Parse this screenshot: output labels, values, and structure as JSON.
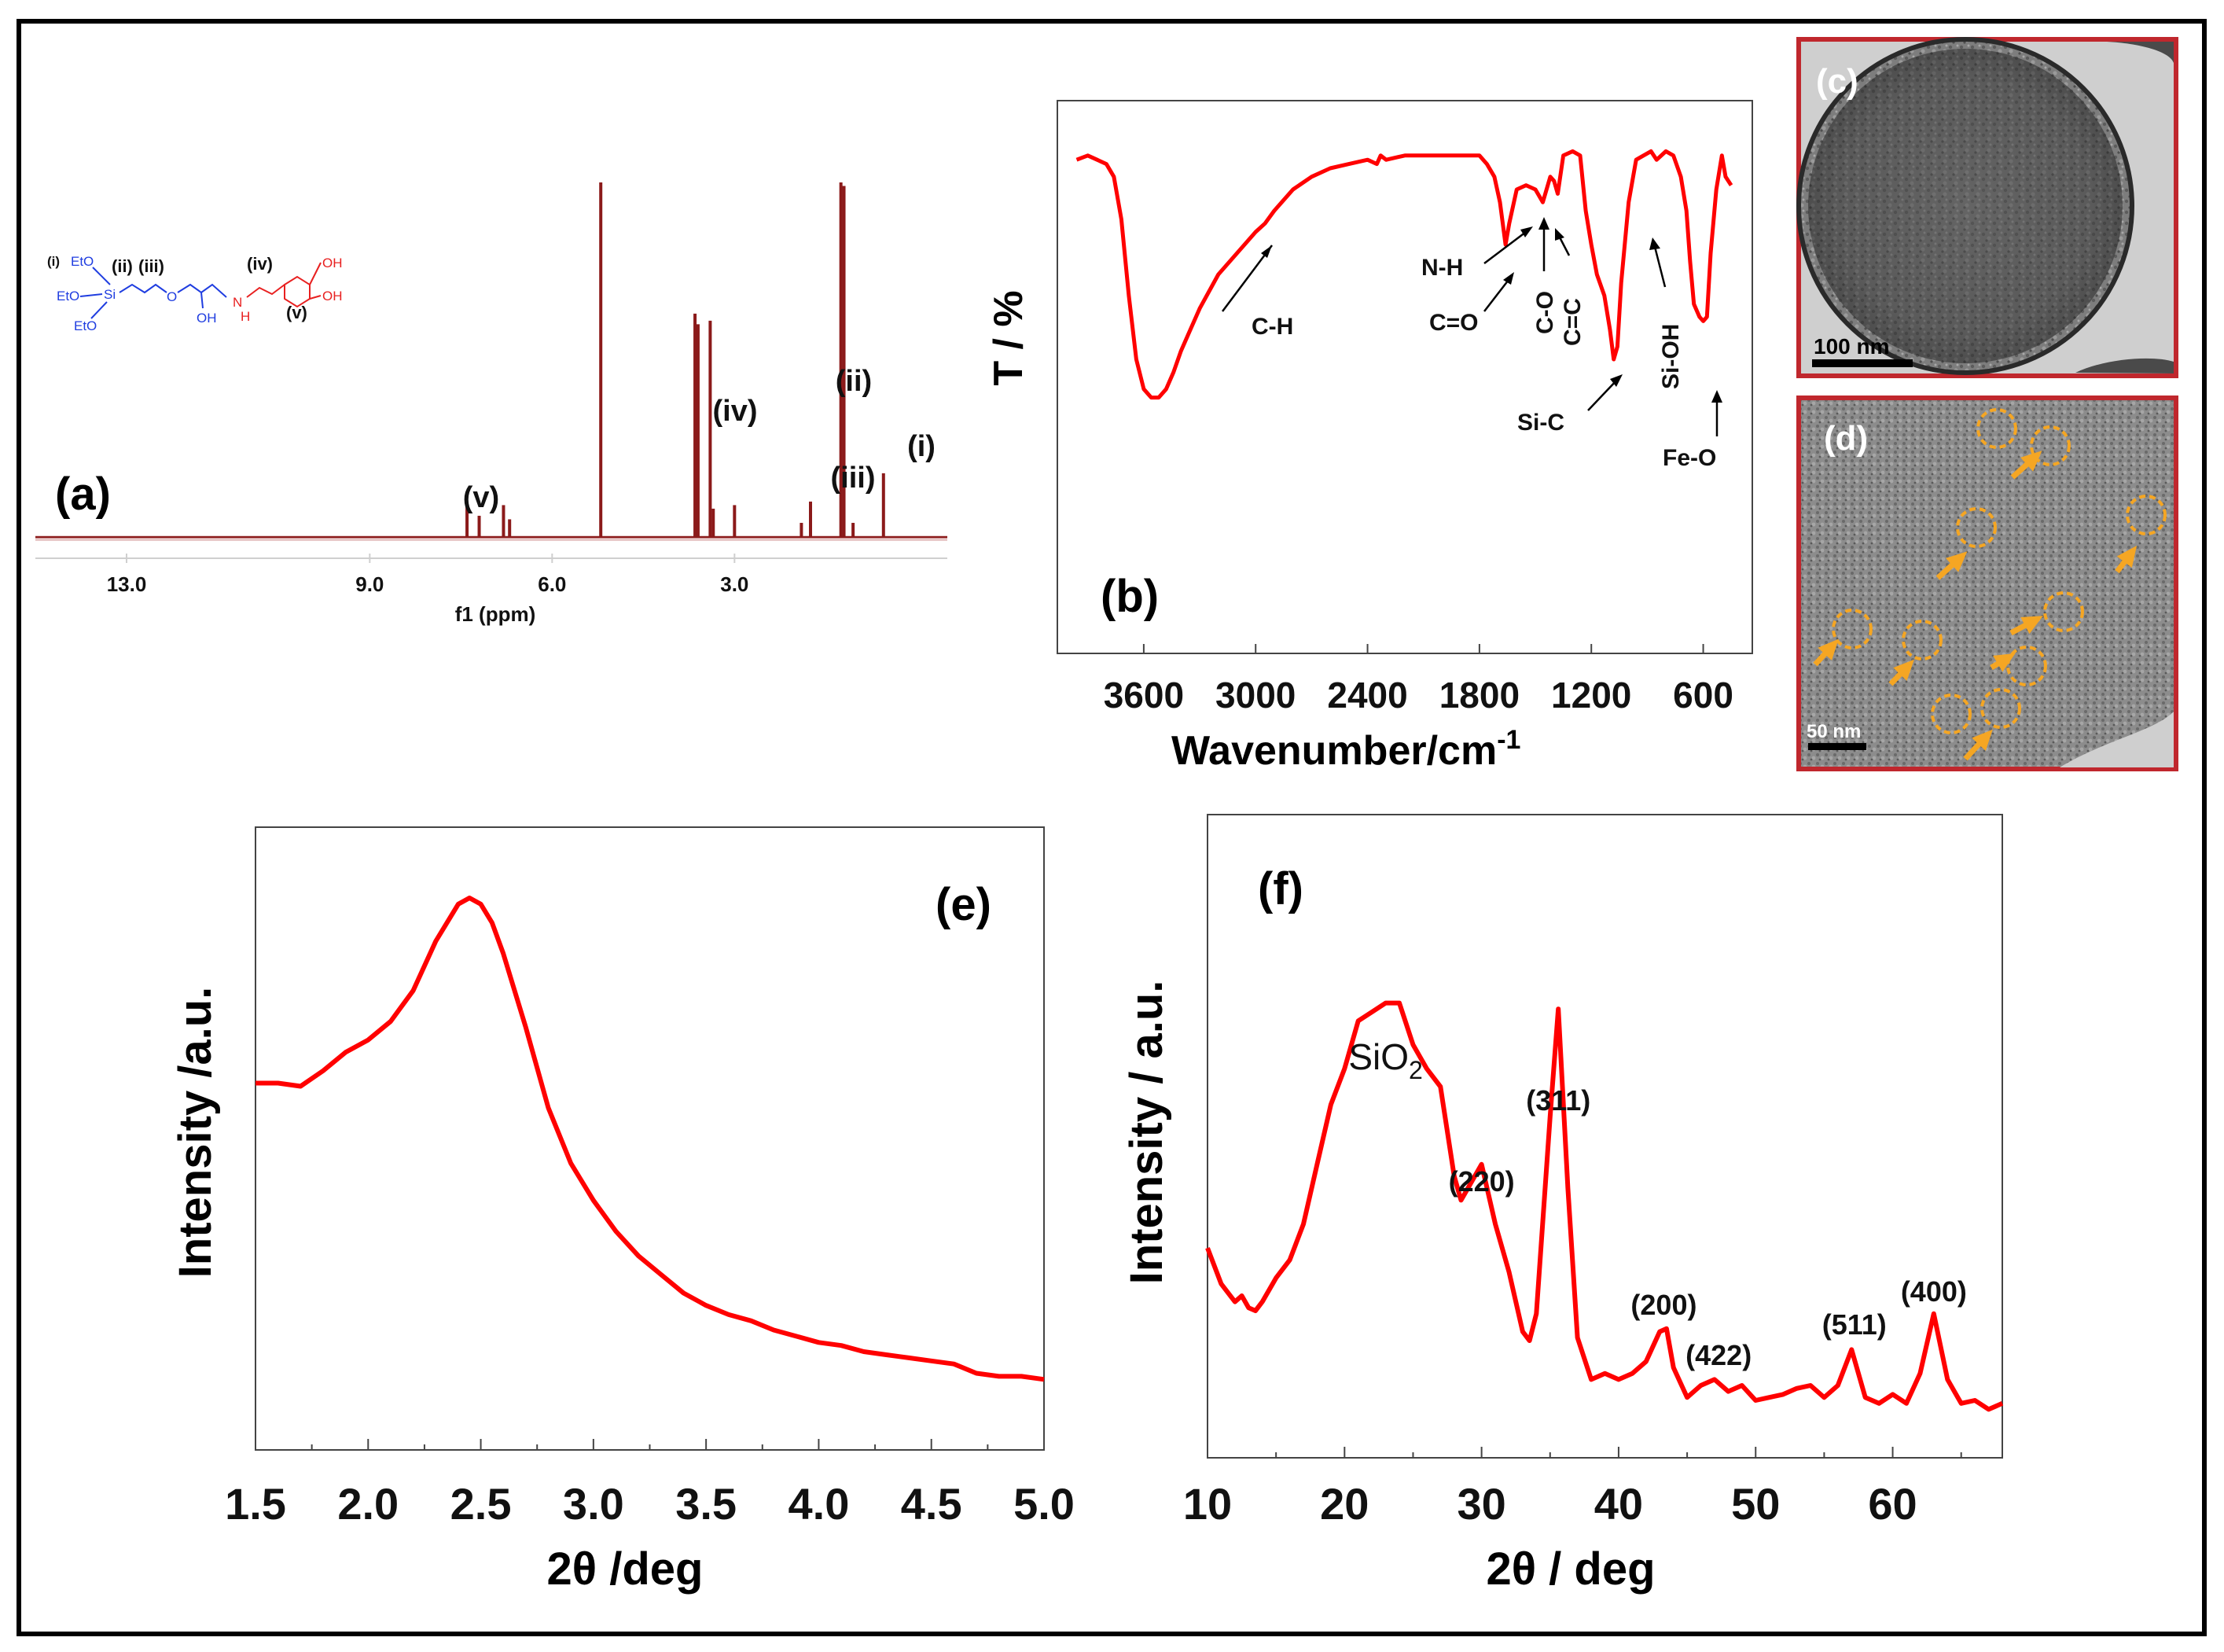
{
  "figure": {
    "colors": {
      "curve": "#ff0000",
      "nmr_trace": "#8b1a1a",
      "tem_border": "#c0272d",
      "marker": "#f5a623",
      "blue_struct": "#1f3de0",
      "red_struct": "#e82020"
    }
  },
  "panels": {
    "a": {
      "letter": "(a)",
      "structure_labels": [
        "(i)",
        "EtO",
        "EtO",
        "EtO",
        "Si",
        "(ii)",
        "(iii)",
        "O",
        "OH",
        "N",
        "H",
        "(iv)",
        "(v)",
        "OH",
        "OH"
      ],
      "xlabel": "f1 (ppm)"
    },
    "b": {
      "letter": "(b)"
    },
    "c": {
      "letter": "(c)",
      "scale_bar": "100 nm"
    },
    "d": {
      "letter": "(d)",
      "scale_bar": "50 nm"
    },
    "e": {
      "letter": "(e)"
    },
    "f": {
      "letter": "(f)"
    }
  },
  "chart_data": [
    {
      "id": "a",
      "type": "line",
      "title": "",
      "xlabel": "f1 (ppm)",
      "ylabel": "",
      "xlim": [
        14.5,
        -0.5
      ],
      "xticks": [
        "13.0",
        "9.0",
        "6.0",
        "3.0"
      ],
      "xtick_values": [
        13.0,
        9.0,
        6.0,
        3.0
      ],
      "peaks": [
        {
          "ppm": 7.4,
          "height": 0.09
        },
        {
          "ppm": 7.2,
          "height": 0.06
        },
        {
          "ppm": 6.8,
          "height": 0.09
        },
        {
          "ppm": 6.7,
          "height": 0.05
        },
        {
          "ppm": 5.2,
          "height": 1.0
        },
        {
          "ppm": 3.65,
          "height": 0.63
        },
        {
          "ppm": 3.6,
          "height": 0.6
        },
        {
          "ppm": 3.4,
          "height": 0.61
        },
        {
          "ppm": 3.35,
          "height": 0.08
        },
        {
          "ppm": 3.0,
          "height": 0.09
        },
        {
          "ppm": 1.9,
          "height": 0.04
        },
        {
          "ppm": 1.75,
          "height": 0.1
        },
        {
          "ppm": 1.25,
          "height": 1.0
        },
        {
          "ppm": 1.2,
          "height": 0.99
        },
        {
          "ppm": 1.05,
          "height": 0.04
        },
        {
          "ppm": 0.55,
          "height": 0.18
        }
      ],
      "annotations": [
        {
          "text": "(v)",
          "ppm": 7.0
        },
        {
          "text": "(iv)",
          "ppm": 3.2
        },
        {
          "text": "(ii)",
          "ppm": 1.4
        },
        {
          "text": "(iii)",
          "ppm": 1.8
        },
        {
          "text": "(i)",
          "ppm": 0.6
        }
      ]
    },
    {
      "id": "b",
      "type": "line",
      "title": "",
      "xlabel": "Wavenumber/cm",
      "xlabel_sup": "-1",
      "ylabel": "T / %",
      "xlim": [
        4000,
        400
      ],
      "ylim": [
        0,
        100
      ],
      "xticks": [
        "3600",
        "3000",
        "2400",
        "1800",
        "1200",
        "600"
      ],
      "xtick_values": [
        3600,
        3000,
        2400,
        1800,
        1200,
        600
      ],
      "x": [
        3960,
        3900,
        3850,
        3800,
        3760,
        3720,
        3680,
        3640,
        3600,
        3560,
        3520,
        3480,
        3440,
        3400,
        3360,
        3300,
        3200,
        3100,
        3000,
        2950,
        2900,
        2800,
        2700,
        2600,
        2500,
        2400,
        2350,
        2330,
        2300,
        2200,
        2000,
        1900,
        1800,
        1760,
        1720,
        1690,
        1660,
        1640,
        1600,
        1550,
        1500,
        1460,
        1420,
        1400,
        1380,
        1350,
        1300,
        1260,
        1230,
        1200,
        1170,
        1130,
        1100,
        1080,
        1060,
        1040,
        1000,
        960,
        920,
        880,
        850,
        800,
        760,
        720,
        690,
        670,
        650,
        620,
        600,
        580,
        560,
        530,
        500,
        480,
        450
      ],
      "y": [
        92,
        93,
        92,
        91,
        88,
        78,
        60,
        45,
        38,
        36,
        36,
        38,
        42,
        47,
        51,
        57,
        65,
        70,
        75,
        77,
        80,
        85,
        88,
        90,
        91,
        92,
        91,
        93,
        92,
        93,
        93,
        93,
        93,
        91,
        88,
        82,
        72,
        77,
        85,
        86,
        85,
        82,
        88,
        87,
        84,
        93,
        94,
        93,
        80,
        72,
        65,
        60,
        52,
        45,
        48,
        63,
        82,
        92,
        93,
        94,
        92,
        94,
        93,
        88,
        80,
        68,
        58,
        55,
        54,
        55,
        70,
        85,
        93,
        88,
        86
      ],
      "annotations": [
        {
          "text": "C-H"
        },
        {
          "text": "N-H"
        },
        {
          "text": "C=O"
        },
        {
          "text": "C-O"
        },
        {
          "text": "C=C"
        },
        {
          "text": "Si-C"
        },
        {
          "text": "Si-OH"
        },
        {
          "text": "Fe-O"
        }
      ]
    },
    {
      "id": "e",
      "type": "line",
      "title": "",
      "xlabel": "2θ /deg",
      "ylabel": "Intensity /a.u.",
      "xlim": [
        1.5,
        5.0
      ],
      "ylim": [
        0,
        100
      ],
      "xticks": [
        "1.5",
        "2.0",
        "2.5",
        "3.0",
        "3.5",
        "4.0",
        "4.5",
        "5.0"
      ],
      "xtick_values": [
        1.5,
        2.0,
        2.5,
        3.0,
        3.5,
        4.0,
        4.5,
        5.0
      ],
      "x": [
        1.5,
        1.6,
        1.7,
        1.8,
        1.9,
        2.0,
        2.1,
        2.2,
        2.3,
        2.4,
        2.45,
        2.5,
        2.55,
        2.6,
        2.7,
        2.8,
        2.9,
        3.0,
        3.1,
        3.2,
        3.3,
        3.4,
        3.5,
        3.6,
        3.7,
        3.8,
        3.9,
        4.0,
        4.1,
        4.2,
        4.3,
        4.4,
        4.5,
        4.6,
        4.7,
        4.8,
        4.9,
        5.0
      ],
      "y": [
        57,
        57,
        56.5,
        59,
        62,
        64,
        67,
        72,
        80,
        86,
        87,
        86,
        83,
        78,
        66,
        53,
        44,
        38,
        33,
        29,
        26,
        23,
        21,
        19.5,
        18.5,
        17,
        16,
        15,
        14.5,
        13.5,
        13,
        12.5,
        12,
        11.5,
        10,
        9.5,
        9.5,
        9
      ]
    },
    {
      "id": "f",
      "type": "line",
      "title": "",
      "xlabel": "2θ / deg",
      "ylabel": "Intensity / a.u.",
      "xlim": [
        10,
        68
      ],
      "ylim": [
        0,
        100
      ],
      "xticks": [
        "10",
        "20",
        "30",
        "40",
        "50",
        "60"
      ],
      "xtick_values": [
        10,
        20,
        30,
        40,
        50,
        60
      ],
      "x": [
        10,
        11,
        12,
        12.5,
        13,
        13.5,
        14,
        15,
        16,
        17,
        18,
        19,
        20,
        21,
        22,
        23,
        24,
        25,
        26,
        27,
        28,
        28.5,
        29,
        30,
        31,
        32,
        33,
        33.5,
        34,
        35,
        35.6,
        36.3,
        37,
        38,
        39,
        40,
        41,
        42,
        43,
        43.5,
        44,
        45,
        46,
        47,
        48,
        49,
        50,
        51,
        52,
        53,
        54,
        55,
        56,
        57,
        58,
        59,
        60,
        61,
        62,
        63,
        64,
        65,
        66,
        67,
        68
      ],
      "y": [
        28,
        22,
        19,
        20,
        18,
        17.5,
        19,
        23,
        26,
        32,
        42,
        52,
        58,
        66,
        67.5,
        69,
        69,
        62,
        58,
        55,
        40,
        36,
        38,
        42,
        32,
        24,
        14,
        12.5,
        17,
        50,
        68,
        38,
        13,
        6,
        7,
        6,
        7,
        9,
        14,
        14.5,
        8,
        3,
        5,
        6,
        4,
        5,
        2.5,
        3,
        3.5,
        4.5,
        5,
        3,
        5,
        11,
        3,
        2,
        3.5,
        2,
        7,
        17,
        6,
        2,
        2.5,
        1,
        2
      ],
      "annotations": [
        {
          "text": "SiO",
          "sub": "2",
          "x": 23
        },
        {
          "text": "(220)",
          "x": 30
        },
        {
          "text": "(311)",
          "x": 35.6
        },
        {
          "text": "(200)",
          "x": 43.3
        },
        {
          "text": "(422)",
          "x": 47.3
        },
        {
          "text": "(511)",
          "x": 57.2
        },
        {
          "text": "(400)",
          "x": 63
        }
      ]
    }
  ]
}
